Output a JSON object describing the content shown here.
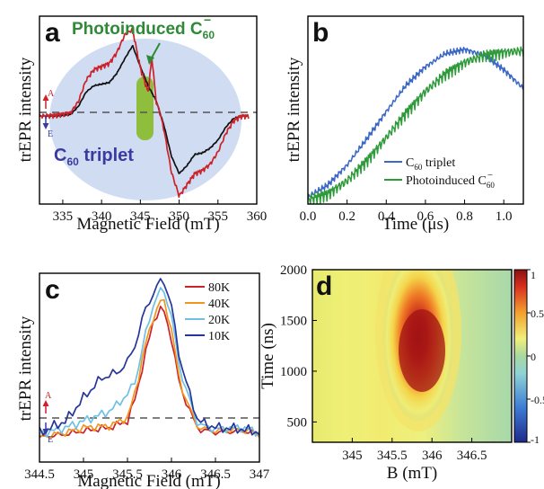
{
  "chart_data": [
    {
      "panel": "a",
      "type": "line",
      "xlabel": "Magnetic Field (mT)",
      "ylabel": "trEPR intensity",
      "xlim": [
        332,
        360
      ],
      "ylim": [
        -1.1,
        1.25
      ],
      "xticks": [
        335,
        340,
        345,
        350,
        355,
        360
      ],
      "annotations": {
        "photoinduced": "Photoinduced C",
        "photoinduced_sub": "60",
        "photoinduced_sup": "−",
        "triplet": "C",
        "triplet_sub": "60",
        "triplet_rest": " triplet",
        "A": "A",
        "E": "E"
      },
      "colors": {
        "red": "#cc2229",
        "black": "#111111",
        "ellipse": "#cfdcf2",
        "band": "#8fbe3c",
        "green_text": "#2e8a36",
        "triplet_text": "#3a3aa0"
      },
      "series": [
        {
          "color": "#111111",
          "x": [
            332,
            334,
            336,
            337,
            338,
            339,
            340,
            341,
            342,
            343,
            344,
            345,
            346,
            347,
            348,
            349,
            350,
            351,
            352,
            353,
            354,
            355,
            356,
            357,
            358,
            359
          ],
          "y": [
            0,
            0,
            0.02,
            0.12,
            0.3,
            0.38,
            0.4,
            0.42,
            0.54,
            0.72,
            0.88,
            0.62,
            0.38,
            0.2,
            -0.1,
            -0.5,
            -0.72,
            -0.62,
            -0.48,
            -0.46,
            -0.4,
            -0.3,
            -0.14,
            -0.03,
            0,
            0
          ]
        },
        {
          "color": "#cc2229",
          "x": [
            332,
            334,
            336,
            337,
            338,
            339,
            340,
            341,
            342,
            343,
            344,
            345,
            346,
            346.5,
            347,
            347.5,
            348,
            349,
            350,
            351,
            352,
            353,
            354,
            355,
            356,
            357,
            358,
            359
          ],
          "y": [
            0,
            0.01,
            0.04,
            0.18,
            0.45,
            0.58,
            0.62,
            0.66,
            0.8,
            1.02,
            1.08,
            0.6,
            0.3,
            0.75,
            0.2,
            0.05,
            -0.15,
            -0.7,
            -1.0,
            -0.86,
            -0.72,
            -0.68,
            -0.6,
            -0.45,
            -0.22,
            -0.06,
            0,
            0
          ]
        }
      ]
    },
    {
      "panel": "b",
      "type": "line",
      "xlabel": "Time (μs)",
      "ylabel": "trEPR intensity",
      "xlim": [
        0,
        1.1
      ],
      "ylim": [
        0,
        1.3
      ],
      "xticks": [
        0.0,
        0.2,
        0.4,
        0.6,
        0.8,
        1.0
      ],
      "series": [
        {
          "name": "C",
          "name_sub": "60",
          "name_rest": " triplet",
          "color": "#3b67c6",
          "x": [
            0,
            0.1,
            0.2,
            0.3,
            0.4,
            0.5,
            0.6,
            0.7,
            0.8,
            0.9,
            1.0,
            1.1
          ],
          "y": [
            0.05,
            0.13,
            0.27,
            0.45,
            0.64,
            0.82,
            0.95,
            1.04,
            1.07,
            1.03,
            0.93,
            0.8
          ]
        },
        {
          "name": "Photoinduced C",
          "name_sub": "60",
          "name_sup": "−",
          "color": "#2e9a3a",
          "x": [
            0,
            0.1,
            0.2,
            0.3,
            0.4,
            0.5,
            0.6,
            0.7,
            0.8,
            0.9,
            1.0,
            1.1
          ],
          "y": [
            0.03,
            0.07,
            0.16,
            0.3,
            0.46,
            0.63,
            0.78,
            0.9,
            0.98,
            1.03,
            1.05,
            1.06
          ]
        }
      ]
    },
    {
      "panel": "c",
      "type": "line",
      "xlabel": "Magnetic Field (mT)",
      "ylabel": "trEPR intensity",
      "xlim": [
        344.5,
        347
      ],
      "ylim": [
        -0.15,
        1.0
      ],
      "xticks": [
        344.5,
        345,
        345.5,
        346,
        346.5,
        347
      ],
      "annotations": {
        "A": "A",
        "E": "E"
      },
      "series": [
        {
          "name": "80K",
          "color": "#cc2229",
          "x": [
            344.5,
            344.8,
            345.0,
            345.3,
            345.5,
            345.6,
            345.7,
            345.8,
            345.9,
            346.0,
            346.1,
            346.3,
            346.5,
            346.8,
            347.0
          ],
          "y": [
            0.0,
            0.02,
            0.04,
            0.06,
            0.1,
            0.26,
            0.5,
            0.72,
            0.8,
            0.6,
            0.3,
            0.05,
            0.03,
            0.04,
            0.02
          ]
        },
        {
          "name": "40K",
          "color": "#f0961e",
          "x": [
            344.5,
            344.8,
            345.0,
            345.3,
            345.5,
            345.6,
            345.7,
            345.8,
            345.9,
            346.0,
            346.1,
            346.3,
            346.5,
            346.8,
            347.0
          ],
          "y": [
            0.0,
            0.03,
            0.06,
            0.07,
            0.12,
            0.3,
            0.56,
            0.74,
            0.86,
            0.66,
            0.32,
            0.06,
            0.04,
            0.05,
            0.02
          ]
        },
        {
          "name": "20K",
          "color": "#6ec1e4",
          "x": [
            344.5,
            344.8,
            345.0,
            345.3,
            345.5,
            345.6,
            345.7,
            345.8,
            345.9,
            346.0,
            346.1,
            346.3,
            346.5,
            346.8,
            347.0
          ],
          "y": [
            0.02,
            0.06,
            0.1,
            0.16,
            0.26,
            0.36,
            0.62,
            0.82,
            0.92,
            0.74,
            0.4,
            0.08,
            0.05,
            0.06,
            0.03
          ]
        },
        {
          "name": "10K",
          "color": "#26359a",
          "x": [
            344.5,
            344.8,
            345.0,
            345.2,
            345.4,
            345.5,
            345.6,
            345.7,
            345.8,
            345.9,
            346.0,
            346.1,
            346.3,
            346.5,
            346.8,
            347.0
          ],
          "y": [
            0.03,
            0.1,
            0.24,
            0.36,
            0.4,
            0.46,
            0.58,
            0.78,
            0.88,
            0.98,
            0.8,
            0.46,
            0.1,
            0.06,
            0.05,
            0.03
          ]
        }
      ]
    },
    {
      "panel": "d",
      "type": "heatmap",
      "xlabel": "B (mT)",
      "ylabel": "Time (ns)",
      "xlim": [
        344.5,
        347
      ],
      "ylim": [
        300,
        2000
      ],
      "xticks": [
        "345",
        "345.5",
        "346",
        "346.5"
      ],
      "yticks": [
        "500",
        "1000",
        "1500",
        "2000"
      ],
      "colorbar": {
        "min": -1,
        "max": 1,
        "ticks": [
          "1",
          "0.5",
          "0",
          "-0.5",
          "-1"
        ]
      },
      "peak_field": 345.9,
      "peak_time": 1300
    }
  ],
  "panel_labels": {
    "a": "a",
    "b": "b",
    "c": "c",
    "d": "d"
  }
}
